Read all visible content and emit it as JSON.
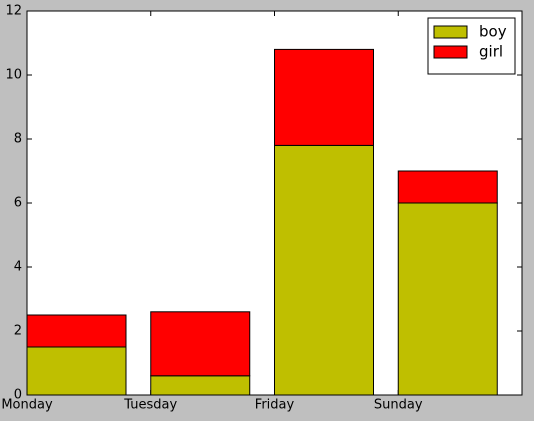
{
  "chart_data": {
    "type": "stacked-bar",
    "categories": [
      "Monday",
      "Tuesday",
      "Friday",
      "Sunday"
    ],
    "series": [
      {
        "name": "boy",
        "color": "#bfbf00",
        "values": [
          1.5,
          0.6,
          7.8,
          6
        ]
      },
      {
        "name": "girl",
        "color": "#ff0000",
        "values": [
          1,
          2,
          3,
          1
        ]
      }
    ],
    "ylim": [
      0,
      12
    ],
    "yticks": [
      0,
      2,
      4,
      6,
      8,
      10,
      12
    ],
    "legend": "upper-right",
    "grid": false
  }
}
